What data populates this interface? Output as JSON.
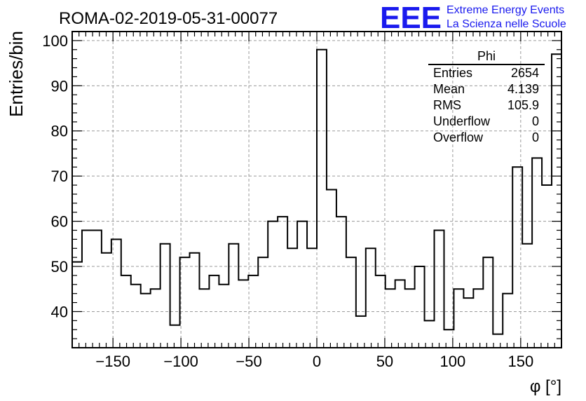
{
  "chart_data": {
    "type": "histogram",
    "title": "ROMA-02-2019-05-31-00077",
    "xlabel": "φ [°]",
    "ylabel": "Entries/bin",
    "xlim": [
      -180,
      180
    ],
    "ylim": [
      32,
      102
    ],
    "bin_width": 7.2,
    "xticks": [
      -150,
      -100,
      -50,
      0,
      50,
      100,
      150
    ],
    "xtick_labels": [
      "−150",
      "−100",
      "−50",
      "0",
      "50",
      "100",
      "150"
    ],
    "yticks": [
      40,
      50,
      60,
      70,
      80,
      90,
      100
    ],
    "ytick_labels": [
      "40",
      "50",
      "60",
      "70",
      "80",
      "90",
      "100"
    ],
    "grid": true,
    "values": [
      51,
      58,
      58,
      53,
      56,
      48,
      46,
      44,
      45,
      55,
      37,
      52,
      53,
      45,
      48,
      46,
      55,
      47,
      48,
      52,
      60,
      61,
      54,
      60,
      54,
      98,
      67,
      61,
      52,
      39,
      54,
      48,
      45,
      47,
      45,
      50,
      38,
      58,
      36,
      45,
      43,
      45,
      52,
      35,
      44,
      72,
      55,
      74,
      68,
      97
    ]
  },
  "stats_box": {
    "title": "Phi",
    "rows": [
      {
        "label": "Entries",
        "value": "2654"
      },
      {
        "label": "Mean",
        "value": "4.139"
      },
      {
        "label": "RMS",
        "value": "105.9"
      },
      {
        "label": "Underflow",
        "value": "0"
      },
      {
        "label": "Overflow",
        "value": "0"
      }
    ]
  },
  "logo": {
    "text": "EEE",
    "line1": "Extreme Energy Events",
    "line2": "La Scienza nelle Scuole"
  },
  "colors": {
    "line": "#000000",
    "grid": "#9a9a9a",
    "logo": "#1a1aee"
  }
}
